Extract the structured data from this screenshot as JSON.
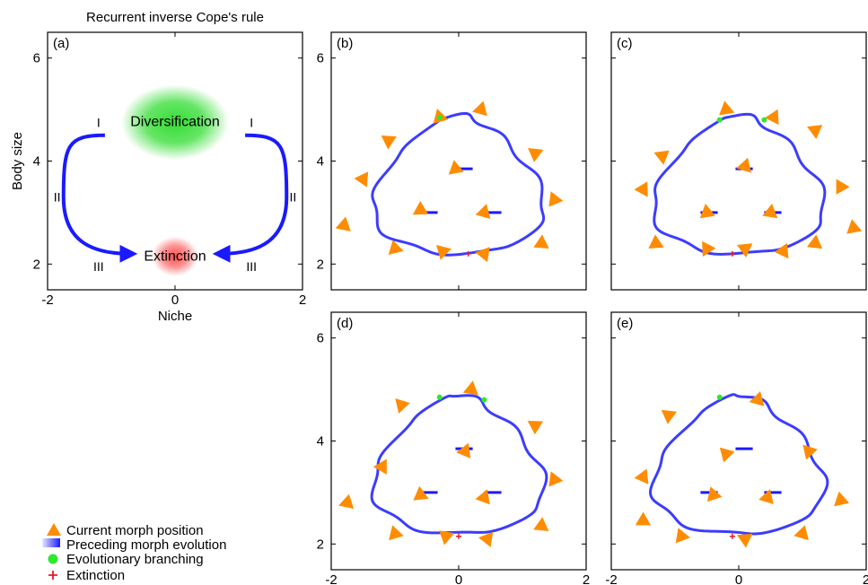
{
  "figure_title": "Recurrent inverse Cope's rule",
  "colors": {
    "trajectory": "#1a1aff",
    "morph": "#ff8c00",
    "branching": "#2ee82e",
    "extinction": "#e8192c",
    "diversification_glow": "#33dd33",
    "extinction_glow": "#ff4d4d"
  },
  "legend": {
    "items": [
      {
        "label": "Current morph position",
        "icon": "orange-triangle-icon"
      },
      {
        "label": "Preceding morph evolution",
        "icon": "blue-gradient-swatch-icon"
      },
      {
        "label": "Evolutionary branching",
        "icon": "green-dot-icon"
      },
      {
        "label": "Extinction",
        "icon": "red-plus-icon"
      }
    ]
  },
  "chart_data": [
    {
      "type": "diagram",
      "panel_label": "(a)",
      "xlabel": "Niche",
      "ylabel": "Body size",
      "xlim": [
        -2,
        2
      ],
      "ylim": [
        1.5,
        6.5
      ],
      "x_ticks": [
        "-2",
        "0",
        "2"
      ],
      "y_ticks": [
        "2",
        "4",
        "6"
      ],
      "regions": [
        {
          "name": "Diversification",
          "x": 0,
          "y": 4.75,
          "color": "#33dd33"
        },
        {
          "name": "Extinction",
          "x": 0,
          "y": 2.15,
          "color": "#ff4d4d"
        }
      ],
      "phase_labels": [
        "I",
        "II",
        "III"
      ],
      "arrows": [
        {
          "side": "left",
          "path": [
            [
              -1.1,
              4.5
            ],
            [
              -1.75,
              3.3
            ],
            [
              -0.7,
              2.2
            ]
          ]
        },
        {
          "side": "right",
          "path": [
            [
              1.1,
              4.5
            ],
            [
              1.75,
              3.3
            ],
            [
              0.7,
              2.2
            ]
          ]
        }
      ]
    },
    {
      "type": "scatter",
      "panel_label": "(b)",
      "xlim": [
        -2,
        2
      ],
      "ylim": [
        1.5,
        6.5
      ],
      "x_ticks": [
        "-2",
        "0",
        "2"
      ],
      "y_ticks": [
        "2",
        "4",
        "6"
      ],
      "morphs": [
        [
          -1.1,
          4.4
        ],
        [
          -0.3,
          4.85
        ],
        [
          0.35,
          5.0
        ],
        [
          1.2,
          4.15
        ],
        [
          -1.5,
          3.65
        ],
        [
          -0.05,
          3.85
        ],
        [
          1.5,
          3.25
        ],
        [
          -0.6,
          3.05
        ],
        [
          0.4,
          3.0
        ],
        [
          -1.8,
          2.75
        ],
        [
          -1.0,
          2.3
        ],
        [
          -0.25,
          2.25
        ],
        [
          0.4,
          2.2
        ],
        [
          1.3,
          2.4
        ]
      ],
      "branching": [
        [
          -0.3,
          4.85
        ]
      ],
      "extinction": [
        [
          0.15,
          2.2
        ]
      ]
    },
    {
      "type": "scatter",
      "panel_label": "(c)",
      "xlim": [
        -2,
        2
      ],
      "ylim": [
        1.5,
        6.5
      ],
      "x_ticks": [
        "-2",
        "0",
        "2"
      ],
      "y_ticks": [
        "2",
        "4",
        "6"
      ],
      "morphs": [
        [
          -0.2,
          5.0
        ],
        [
          0.55,
          4.85
        ],
        [
          1.2,
          4.6
        ],
        [
          -1.2,
          4.1
        ],
        [
          0.1,
          3.9
        ],
        [
          1.6,
          3.5
        ],
        [
          -1.5,
          3.45
        ],
        [
          -0.5,
          3.0
        ],
        [
          0.5,
          3.0
        ],
        [
          1.8,
          2.7
        ],
        [
          -1.3,
          2.4
        ],
        [
          -0.5,
          2.3
        ],
        [
          0.1,
          2.3
        ],
        [
          0.7,
          2.25
        ],
        [
          1.2,
          2.4
        ]
      ],
      "branching": [
        [
          -0.3,
          4.8
        ],
        [
          0.4,
          4.8
        ]
      ],
      "extinction": [
        [
          -0.1,
          2.2
        ]
      ]
    },
    {
      "type": "scatter",
      "panel_label": "(d)",
      "xlim": [
        -2,
        2
      ],
      "ylim": [
        1.5,
        6.5
      ],
      "x_ticks": [
        "-2",
        "0",
        "2"
      ],
      "y_ticks": [
        "2",
        "4",
        "6"
      ],
      "morphs": [
        [
          -0.9,
          4.7
        ],
        [
          0.2,
          5.0
        ],
        [
          1.2,
          4.3
        ],
        [
          0.1,
          3.8
        ],
        [
          -1.2,
          3.5
        ],
        [
          1.5,
          3.25
        ],
        [
          -0.6,
          2.95
        ],
        [
          0.4,
          2.9
        ],
        [
          -1.75,
          2.8
        ],
        [
          -1.0,
          2.2
        ],
        [
          -0.2,
          2.15
        ],
        [
          0.45,
          2.1
        ],
        [
          1.3,
          2.35
        ]
      ],
      "branching": [
        [
          -0.3,
          4.85
        ],
        [
          0.4,
          4.8
        ]
      ],
      "extinction": [
        [
          0.0,
          2.15
        ]
      ]
    },
    {
      "type": "scatter",
      "panel_label": "(e)",
      "xlim": [
        -2,
        2
      ],
      "ylim": [
        1.5,
        6.5
      ],
      "x_ticks": [
        "-2",
        "0",
        "2"
      ],
      "y_ticks": [
        "2",
        "4",
        "6"
      ],
      "morphs": [
        [
          0.3,
          4.8
        ],
        [
          -1.1,
          4.5
        ],
        [
          -0.2,
          3.75
        ],
        [
          1.1,
          3.8
        ],
        [
          -1.5,
          3.3
        ],
        [
          -0.4,
          2.95
        ],
        [
          0.45,
          2.9
        ],
        [
          1.6,
          2.85
        ],
        [
          -1.5,
          2.45
        ],
        [
          -0.9,
          2.15
        ],
        [
          0.1,
          2.1
        ],
        [
          1.0,
          2.2
        ]
      ],
      "branching": [
        [
          -0.3,
          4.85
        ]
      ],
      "extinction": [
        [
          -0.1,
          2.15
        ]
      ]
    }
  ]
}
